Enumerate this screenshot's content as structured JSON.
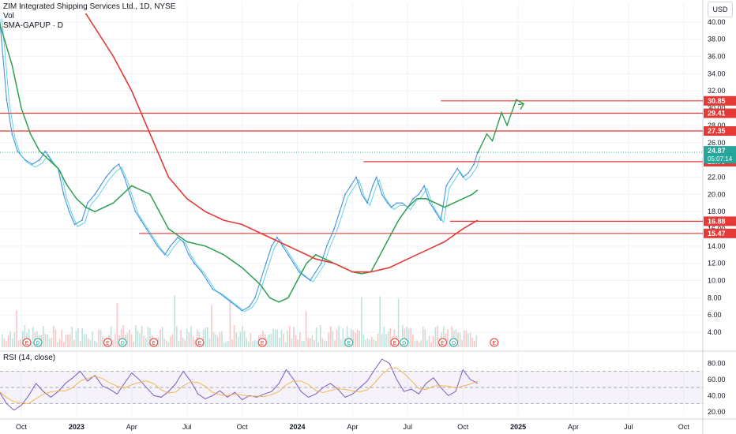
{
  "legend": {
    "title": "ZIM Integrated Shipping Services Ltd., 1D, NYSE",
    "line2": "Vol",
    "line3": "SMA-GAPUP · D"
  },
  "rsi_label": "RSI (14, close)",
  "currency": "USD",
  "colors": {
    "price": "#4a90e2",
    "price_fast": "#26c6da",
    "sma_mid": "#2e9e4f",
    "sma_long": "#e53935",
    "level": "#e53935",
    "projection": "#2e9e4f",
    "rsi": "#7e57c2",
    "rsi_ma": "#f5b041",
    "badge_current": "#26a69a",
    "badge_level": "#e53935"
  },
  "chart_data": [
    {
      "type": "line",
      "name": "price",
      "y_axis_ticks": [
        "40.00",
        "38.00",
        "36.00",
        "34.00",
        "32.00",
        "30.00",
        "28.00",
        "26.00",
        "24.00",
        "22.00",
        "20.00",
        "18.00",
        "16.00",
        "14.00",
        "12.00",
        "10.00",
        "8.00",
        "6.00",
        "4.00"
      ],
      "ylim": [
        3,
        42
      ],
      "x_axis_ticks": [
        "Oct",
        "2023",
        "Apr",
        "Jul",
        "Oct",
        "2024",
        "Apr",
        "Jul",
        "Oct",
        "2025",
        "Apr",
        "Jul",
        "Oct"
      ],
      "x_tick_positions_months": [
        0,
        3,
        6,
        9,
        12,
        15,
        18,
        21,
        24,
        27,
        30,
        33,
        36
      ],
      "series": [
        {
          "name": "close",
          "x": [
            -1.2,
            -1,
            -0.8,
            -0.5,
            -0.2,
            0.2,
            0.6,
            1,
            1.3,
            1.6,
            2,
            2.3,
            2.6,
            2.9,
            3.3,
            3.6,
            4,
            4.3,
            4.6,
            5,
            5.3,
            5.6,
            5.9,
            6.2,
            6.5,
            6.8,
            7.1,
            7.4,
            7.8,
            8.1,
            8.5,
            8.8,
            9.1,
            9.4,
            9.8,
            10.1,
            10.4,
            10.8,
            11.1,
            11.4,
            11.7,
            12,
            12.4,
            12.7,
            13,
            13.3,
            13.6,
            13.9,
            14.2,
            14.5,
            14.8,
            15.1,
            15.4,
            15.7,
            16,
            16.3,
            16.6,
            17,
            17.3,
            17.6,
            17.9,
            18.2,
            18.5,
            18.8,
            19.1,
            19.3,
            19.6,
            19.9,
            20.1,
            20.4,
            20.7,
            21,
            21.3,
            21.6,
            21.9,
            22.2,
            22.5,
            22.8,
            23.1,
            23.4,
            23.7,
            24,
            24.3,
            24.6,
            24.8
          ],
          "values": [
            41,
            36,
            31,
            27,
            25,
            24,
            23.5,
            24,
            25,
            24,
            23,
            20,
            18,
            16.5,
            17,
            19,
            20,
            21,
            22,
            23,
            23.5,
            22,
            20,
            18,
            17,
            16,
            15,
            14,
            13,
            14,
            15,
            14.5,
            13,
            12,
            11,
            10,
            9,
            8.5,
            8,
            7.5,
            7,
            6.5,
            7,
            8,
            10,
            12,
            14,
            15,
            14,
            13,
            12,
            11,
            10.5,
            10,
            11,
            12,
            14,
            16,
            18,
            20,
            21,
            22,
            20,
            19,
            21,
            22,
            20,
            19,
            18.5,
            19,
            19,
            18.5,
            19.5,
            20,
            21,
            19,
            18,
            17,
            21,
            22,
            23,
            22,
            22.5,
            23.5,
            24.87
          ]
        },
        {
          "name": "SMA-GAPUP mid",
          "x": [
            -1.2,
            -0.5,
            0,
            0.5,
            1,
            1.5,
            2,
            2.5,
            3,
            3.5,
            4,
            5,
            6,
            7,
            8,
            9,
            10,
            11,
            12,
            12.5,
            13,
            13.5,
            14,
            14.5,
            15,
            15.5,
            16,
            16.5,
            17,
            17.5,
            18,
            18.5,
            19,
            19.5,
            20,
            20.5,
            21,
            21.5,
            22,
            22.5,
            23,
            23.5,
            24,
            24.5,
            24.8
          ],
          "values": [
            40,
            35,
            30,
            27,
            25,
            24,
            23,
            21,
            19.5,
            18.5,
            18,
            19,
            21,
            20,
            16,
            14.5,
            14,
            13,
            11.5,
            10.5,
            9.5,
            8,
            7.5,
            8,
            10,
            12,
            13,
            12.5,
            12,
            11.5,
            11,
            10.8,
            11,
            13,
            15,
            17,
            18.5,
            19.5,
            19.5,
            19,
            18.5,
            19,
            19.5,
            20,
            20.5
          ]
        },
        {
          "name": "SMA-GAPUP long",
          "x": [
            3.5,
            5,
            6,
            7,
            8,
            9,
            10,
            11,
            12,
            13,
            14,
            15,
            16,
            17,
            18,
            18.5,
            19,
            20,
            21,
            22,
            23,
            24,
            24.8
          ],
          "values": [
            41,
            36,
            32,
            27,
            22,
            19.5,
            18,
            17,
            16.5,
            15.5,
            14.5,
            13.5,
            12.5,
            12,
            11,
            11,
            11,
            11.5,
            12.5,
            13.5,
            14.5,
            16,
            17
          ]
        }
      ],
      "levels": [
        {
          "label": "30.85",
          "value": 30.85,
          "x_from_months": 22.8
        },
        {
          "label": "29.41",
          "value": 29.41,
          "x_from_months": -1.2
        },
        {
          "label": "27.35",
          "value": 27.35,
          "x_from_months": -1.2
        },
        {
          "label": "23.79",
          "value": 23.79,
          "x_from_months": 18.6
        },
        {
          "label": "16.88",
          "value": 16.88,
          "x_from_months": 23.3
        },
        {
          "label": "15.47",
          "value": 15.47,
          "x_from_months": 6.4
        }
      ],
      "current_price": {
        "label": "24.87",
        "value": 24.87,
        "countdown": "05:07:14"
      },
      "projection": {
        "x": [
          24.8,
          25.3,
          25.6,
          26.1,
          26.4,
          26.9,
          27.3
        ],
        "values": [
          24.8,
          27.0,
          26.2,
          29.5,
          28.0,
          31.0,
          30.5
        ]
      },
      "event_markers": [
        {
          "x": 0.3,
          "type": "E"
        },
        {
          "x": 0.9,
          "type": "D"
        },
        {
          "x": 4.7,
          "type": "E"
        },
        {
          "x": 5.5,
          "type": "D"
        },
        {
          "x": 7.2,
          "type": "E"
        },
        {
          "x": 9.7,
          "type": "E"
        },
        {
          "x": 13.1,
          "type": "E"
        },
        {
          "x": 17.8,
          "type": "E"
        },
        {
          "x": 20.3,
          "type": "E"
        },
        {
          "x": 20.8,
          "type": "D"
        },
        {
          "x": 22.9,
          "type": "E"
        },
        {
          "x": 23.5,
          "type": "D"
        },
        {
          "x": 25.7,
          "type": "E"
        }
      ]
    },
    {
      "type": "line",
      "name": "RSI (14, close)",
      "y_axis_ticks": [
        "80.00",
        "60.00",
        "40.00",
        "20.00"
      ],
      "ylim": [
        15,
        90
      ],
      "bands": [
        70,
        30
      ],
      "x": [
        -1.2,
        -0.8,
        -0.4,
        0,
        0.4,
        0.8,
        1.2,
        1.6,
        2,
        2.4,
        2.8,
        3.2,
        3.6,
        4,
        4.4,
        4.8,
        5.2,
        5.6,
        6,
        6.4,
        6.8,
        7.2,
        7.6,
        8,
        8.4,
        8.8,
        9.2,
        9.6,
        10,
        10.4,
        10.8,
        11.2,
        11.6,
        12,
        12.4,
        12.8,
        13.2,
        13.6,
        14,
        14.4,
        14.8,
        15.2,
        15.6,
        16,
        16.4,
        16.8,
        17.2,
        17.6,
        18,
        18.4,
        18.8,
        19.2,
        19.6,
        20,
        20.4,
        20.8,
        21.2,
        21.6,
        22,
        22.4,
        22.8,
        23.2,
        23.6,
        24,
        24.4,
        24.8
      ],
      "values": [
        45,
        30,
        22,
        28,
        40,
        55,
        45,
        38,
        45,
        55,
        62,
        70,
        58,
        65,
        52,
        48,
        42,
        55,
        68,
        60,
        50,
        40,
        38,
        45,
        55,
        70,
        58,
        42,
        36,
        40,
        46,
        38,
        44,
        35,
        40,
        38,
        42,
        45,
        55,
        72,
        60,
        45,
        38,
        42,
        50,
        55,
        48,
        38,
        42,
        50,
        58,
        72,
        85,
        80,
        60,
        45,
        48,
        42,
        55,
        62,
        50,
        40,
        45,
        72,
        60,
        55
      ]
    }
  ]
}
